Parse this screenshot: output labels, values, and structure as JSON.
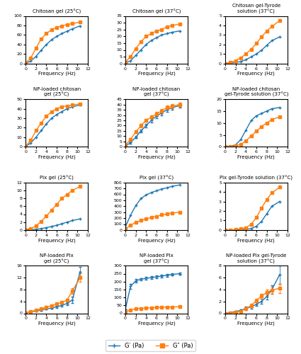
{
  "chart_data": [
    {
      "type": "line",
      "title": "Chitosan gel (25°C)",
      "xlabel": "Frequency (Hz)",
      "x": [
        0,
        1,
        2,
        3,
        4,
        5,
        6,
        7,
        8,
        9,
        10.5
      ],
      "xlim": [
        0,
        12
      ],
      "xticks": [
        0,
        2,
        4,
        6,
        8,
        10,
        12
      ],
      "ylim": [
        0,
        100
      ],
      "yticks": [
        0,
        20,
        40,
        60,
        80,
        100
      ],
      "series": [
        {
          "name": "G′ (Pa)",
          "marker": "plus",
          "values": [
            0.3,
            5,
            15,
            28,
            40,
            50,
            57,
            63,
            68,
            73,
            79
          ]
        },
        {
          "name": "G″ (Pa)",
          "marker": "square",
          "values": [
            0.5,
            12,
            32,
            52,
            63,
            71,
            76,
            79,
            82,
            84,
            87
          ]
        }
      ]
    },
    {
      "type": "line",
      "title": "Chitosan gel (37°C)",
      "xlabel": "Frequency (Hz)",
      "x": [
        0,
        1,
        2,
        3,
        4,
        5,
        6,
        7,
        8,
        9,
        10.5
      ],
      "xlim": [
        0,
        12
      ],
      "xticks": [
        0,
        2,
        4,
        6,
        8,
        10,
        12
      ],
      "ylim": [
        0,
        35
      ],
      "yticks": [
        0,
        5,
        10,
        15,
        20,
        25,
        30,
        35
      ],
      "series": [
        {
          "name": "G′ (Pa)",
          "marker": "plus",
          "values": [
            0.3,
            2,
            6,
            10,
            14,
            17,
            19,
            21,
            22,
            23,
            24
          ]
        },
        {
          "name": "G″ (Pa)",
          "marker": "square",
          "values": [
            1,
            5,
            11,
            16,
            20,
            22,
            24,
            25,
            27,
            28,
            29
          ]
        }
      ]
    },
    {
      "type": "line",
      "title": "Chitosan gel-Tyrode\nsolution (37°C)",
      "xlabel": "Frequency (Hz)",
      "x": [
        0,
        1,
        2,
        3,
        4,
        5,
        6,
        7,
        8,
        9,
        10.5
      ],
      "xlim": [
        0,
        12
      ],
      "xticks": [
        0,
        2,
        4,
        6,
        8,
        10,
        12
      ],
      "ylim": [
        0,
        5
      ],
      "yticks": [
        0,
        1,
        2,
        3,
        4,
        5
      ],
      "series": [
        {
          "name": "G′ (Pa)",
          "marker": "plus",
          "values": [
            0.0,
            0.05,
            0.1,
            0.2,
            0.4,
            0.7,
            1.0,
            1.4,
            1.9,
            2.4,
            2.8
          ]
        },
        {
          "name": "G″ (Pa)",
          "marker": "square",
          "values": [
            0.0,
            0.1,
            0.3,
            0.6,
            1.0,
            1.5,
            2.1,
            2.8,
            3.4,
            3.9,
            4.5
          ]
        }
      ]
    },
    {
      "type": "line",
      "title": "NP-loaded chitosan\ngel (25°C)",
      "xlabel": "Frequency (Hz)",
      "x": [
        0,
        1,
        2,
        3,
        4,
        5,
        6,
        7,
        8,
        9,
        10.5
      ],
      "xlim": [
        0,
        12
      ],
      "xticks": [
        0,
        2,
        4,
        6,
        8,
        10,
        12
      ],
      "ylim": [
        0,
        50
      ],
      "yticks": [
        0,
        10,
        20,
        30,
        40,
        50
      ],
      "series": [
        {
          "name": "G′ (Pa)",
          "marker": "plus",
          "values": [
            0.3,
            4,
            10,
            17,
            24,
            30,
            34,
            37,
            40,
            42,
            44
          ]
        },
        {
          "name": "G″ (Pa)",
          "marker": "square",
          "values": [
            0.5,
            7,
            17,
            25,
            32,
            37,
            40,
            42,
            43,
            44,
            45
          ]
        }
      ]
    },
    {
      "type": "line",
      "title": "NP-loaded chitosan\ngel (37°C)",
      "xlabel": "Frequency (Hz)",
      "x": [
        0,
        1,
        2,
        3,
        4,
        5,
        6,
        7,
        8,
        9,
        10.5
      ],
      "xlim": [
        0,
        12
      ],
      "xticks": [
        0,
        2,
        4,
        6,
        8,
        10,
        12
      ],
      "ylim": [
        0,
        45
      ],
      "yticks": [
        0,
        5,
        10,
        15,
        20,
        25,
        30,
        35,
        40,
        45
      ],
      "series": [
        {
          "name": "G′ (Pa)",
          "marker": "plus",
          "values": [
            0.5,
            4,
            9,
            15,
            20,
            25,
            29,
            32,
            35,
            37,
            39
          ],
          "errors": [
            0,
            1,
            1,
            1.5,
            1.5,
            2,
            2,
            2,
            2,
            2,
            2
          ]
        },
        {
          "name": "G″ (Pa)",
          "marker": "square",
          "values": [
            1.5,
            7,
            14,
            20,
            25,
            28,
            31,
            34,
            37,
            38.5,
            40
          ],
          "errors": [
            0,
            1,
            1,
            1.5,
            1.5,
            2,
            2,
            2,
            2,
            2,
            2
          ]
        }
      ]
    },
    {
      "type": "line",
      "title": "NP-loaded chitosan\ngel-Tyrode solution (37°C)",
      "xlabel": "Frequency (Hz)",
      "x": [
        0,
        1,
        2,
        3,
        4,
        5,
        6,
        7,
        8,
        9,
        10.5
      ],
      "xlim": [
        0,
        12
      ],
      "xticks": [
        0,
        2,
        4,
        6,
        8,
        10,
        12
      ],
      "ylim": [
        0,
        20
      ],
      "yticks": [
        0,
        5,
        10,
        15,
        20
      ],
      "series": [
        {
          "name": "G′ (Pa)",
          "marker": "plus",
          "values": [
            0.0,
            0.2,
            0.8,
            3,
            7,
            11,
            13,
            14,
            15,
            16,
            16.5
          ]
        },
        {
          "name": "G″ (Pa)",
          "marker": "square",
          "values": [
            0.0,
            0.1,
            0.3,
            1.0,
            2.5,
            4.5,
            6.5,
            8.5,
            10,
            11.5,
            12.5
          ]
        }
      ]
    },
    {
      "type": "line",
      "title": "Plx gel (25°C)",
      "xlabel": "Frequency (Hz)",
      "x": [
        0,
        1,
        2,
        3,
        4,
        5,
        6,
        7,
        8,
        9,
        10.5
      ],
      "xlim": [
        0,
        12
      ],
      "xticks": [
        0,
        2,
        4,
        6,
        8,
        10,
        12
      ],
      "ylim": [
        0,
        12
      ],
      "yticks": [
        0,
        2,
        4,
        6,
        8,
        10,
        12
      ],
      "series": [
        {
          "name": "G′ (Pa)",
          "marker": "plus",
          "values": [
            0.02,
            0.08,
            0.18,
            0.35,
            0.6,
            0.9,
            1.2,
            1.6,
            2.0,
            2.4,
            2.8
          ]
        },
        {
          "name": "G″ (Pa)",
          "marker": "square",
          "values": [
            0.05,
            0.4,
            1.0,
            2.2,
            3.5,
            5.0,
            6.5,
            8.0,
            9.0,
            10.0,
            11.0
          ]
        }
      ]
    },
    {
      "type": "line",
      "title": "Plx gel (37°C)",
      "xlabel": "Frequency (Hz)",
      "x": [
        0,
        1,
        2,
        3,
        4,
        5,
        6,
        7,
        8,
        9,
        10.5
      ],
      "xlim": [
        0,
        12
      ],
      "xticks": [
        0,
        2,
        4,
        6,
        8,
        10,
        12
      ],
      "ylim": [
        0,
        800
      ],
      "yticks": [
        0,
        100,
        200,
        300,
        400,
        500,
        600,
        700,
        800
      ],
      "series": [
        {
          "name": "G′ (Pa)",
          "marker": "plus",
          "values": [
            50,
            250,
            410,
            530,
            590,
            630,
            660,
            690,
            710,
            735,
            760
          ]
        },
        {
          "name": "G″ (Pa)",
          "marker": "square",
          "values": [
            15,
            80,
            130,
            160,
            190,
            210,
            230,
            255,
            270,
            285,
            300
          ]
        }
      ]
    },
    {
      "type": "line",
      "title": "Plx gel-Tyrode solution (37°C)",
      "xlabel": "Frequency (Hz)",
      "x": [
        0,
        1,
        2,
        3,
        4,
        5,
        6,
        7,
        8,
        9,
        10.5
      ],
      "xlim": [
        0,
        12
      ],
      "xticks": [
        0,
        2,
        4,
        6,
        8,
        10,
        12
      ],
      "ylim": [
        0,
        5
      ],
      "yticks": [
        0,
        1,
        2,
        3,
        4,
        5
      ],
      "series": [
        {
          "name": "G′ (Pa)",
          "marker": "plus",
          "values": [
            0.0,
            0.0,
            0.01,
            0.03,
            0.07,
            0.15,
            0.4,
            0.9,
            1.7,
            2.5,
            3.0
          ]
        },
        {
          "name": "G″ (Pa)",
          "marker": "square",
          "values": [
            0.0,
            0.02,
            0.05,
            0.12,
            0.25,
            0.6,
            1.3,
            2.3,
            3.2,
            3.9,
            4.5
          ]
        }
      ]
    },
    {
      "type": "line",
      "title": "NP-loaded Plx\ngel (25°C)",
      "xlabel": "Frequency (Hz)",
      "x": [
        0,
        1,
        2,
        3,
        4,
        5,
        6,
        7,
        8,
        9,
        10.5
      ],
      "xlim": [
        0,
        12
      ],
      "xticks": [
        0,
        2,
        4,
        6,
        8,
        10,
        12
      ],
      "ylim": [
        0,
        16
      ],
      "yticks": [
        0,
        4,
        8,
        12,
        16
      ],
      "series": [
        {
          "name": "G′ (Pa)",
          "marker": "plus",
          "values": [
            0.2,
            0.5,
            0.8,
            1.1,
            1.5,
            1.8,
            2.2,
            2.7,
            3.3,
            4.5,
            14.0
          ],
          "errors": [
            0,
            0.1,
            0.2,
            0.2,
            0.3,
            0.3,
            0.3,
            0.4,
            0.5,
            1.0,
            1.5
          ]
        },
        {
          "name": "G″ (Pa)",
          "marker": "square",
          "values": [
            0.2,
            0.6,
            1.0,
            1.5,
            2.1,
            2.6,
            3.1,
            3.6,
            4.5,
            7.5,
            12.0
          ],
          "errors": [
            0,
            0.1,
            0.2,
            0.2,
            0.3,
            0.3,
            0.3,
            0.4,
            0.5,
            1.0,
            1.5
          ]
        }
      ]
    },
    {
      "type": "line",
      "title": "NP-loaded Plx\ngel (37°C)",
      "xlabel": "Frequency (Hz)",
      "x": [
        0,
        1,
        2,
        3,
        4,
        5,
        6,
        7,
        8,
        9,
        10.5
      ],
      "xlim": [
        0,
        12
      ],
      "xticks": [
        0,
        2,
        4,
        6,
        8,
        10,
        12
      ],
      "ylim": [
        0,
        300
      ],
      "yticks": [
        0,
        50,
        100,
        150,
        200,
        250,
        300
      ],
      "series": [
        {
          "name": "G′ (Pa)",
          "marker": "plus",
          "values": [
            25,
            170,
            205,
            215,
            220,
            225,
            230,
            235,
            240,
            245,
            250
          ],
          "errors": [
            0,
            15,
            10,
            8,
            8,
            8,
            8,
            8,
            8,
            8,
            8
          ]
        },
        {
          "name": "G″ (Pa)",
          "marker": "square",
          "values": [
            8,
            22,
            28,
            31,
            33,
            35,
            36,
            38,
            39,
            40,
            42
          ],
          "errors": [
            0,
            3,
            3,
            3,
            3,
            3,
            3,
            3,
            3,
            3,
            3
          ]
        }
      ]
    },
    {
      "type": "line",
      "title": "NP-loaded Plx gel-Tyrode\nsolution (37°C)",
      "xlabel": "Frequency (Hz)",
      "x": [
        0,
        1,
        2,
        3,
        4,
        5,
        6,
        7,
        8,
        9,
        10.5
      ],
      "xlim": [
        0,
        12
      ],
      "xticks": [
        0,
        2,
        4,
        6,
        8,
        10,
        12
      ],
      "ylim": [
        0,
        8
      ],
      "yticks": [
        0,
        2,
        4,
        6,
        8
      ],
      "legend": "lower center",
      "series": [
        {
          "name": "G′ (Pa)",
          "marker": "plus",
          "values": [
            0.0,
            0.1,
            0.3,
            0.5,
            0.8,
            1.1,
            1.5,
            2.0,
            2.8,
            4.0,
            6.5
          ],
          "errors": [
            0,
            0.1,
            0.1,
            0.2,
            0.3,
            0.3,
            0.3,
            0.4,
            0.5,
            0.7,
            1.5
          ]
        },
        {
          "name": "G″ (Pa)",
          "marker": "square",
          "values": [
            0.0,
            0.05,
            0.12,
            0.35,
            0.8,
            1.3,
            2.1,
            2.9,
            3.5,
            3.9,
            4.2
          ],
          "errors": [
            0,
            0.05,
            0.1,
            0.15,
            0.2,
            0.3,
            0.3,
            0.4,
            0.5,
            0.6,
            0.8
          ]
        }
      ]
    }
  ]
}
